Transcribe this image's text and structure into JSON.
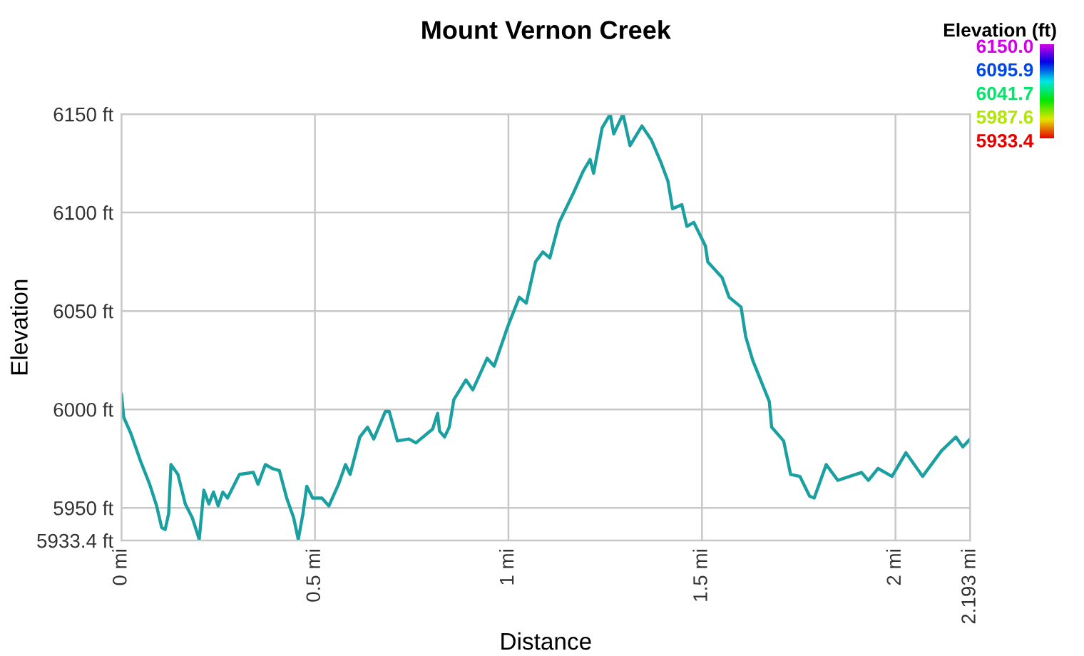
{
  "chart_data": {
    "type": "line",
    "title": "Mount Vernon Creek",
    "xlabel": "Distance",
    "ylabel": "Elevation",
    "clabel": "Elevation (ft)",
    "x": [
      0,
      0.006,
      0.024,
      0.049,
      0.073,
      0.091,
      0.104,
      0.113,
      0.122,
      0.128,
      0.146,
      0.165,
      0.183,
      0.201,
      0.213,
      0.226,
      0.238,
      0.25,
      0.262,
      0.274,
      0.305,
      0.341,
      0.353,
      0.372,
      0.39,
      0.408,
      0.427,
      0.445,
      0.457,
      0.469,
      0.479,
      0.494,
      0.518,
      0.536,
      0.561,
      0.579,
      0.591,
      0.616,
      0.636,
      0.652,
      0.682,
      0.692,
      0.713,
      0.743,
      0.761,
      0.804,
      0.817,
      0.822,
      0.835,
      0.847,
      0.859,
      0.89,
      0.908,
      0.945,
      0.963,
      0.998,
      1.028,
      1.046,
      1.07,
      1.089,
      1.107,
      1.131,
      1.168,
      1.193,
      1.211,
      1.22,
      1.242,
      1.263,
      1.272,
      1.296,
      1.314,
      1.345,
      1.369,
      1.393,
      1.412,
      1.424,
      1.448,
      1.461,
      1.479,
      1.509,
      1.515,
      1.552,
      1.57,
      1.601,
      1.613,
      1.631,
      1.674,
      1.68,
      1.711,
      1.729,
      1.753,
      1.778,
      1.79,
      1.821,
      1.851,
      1.912,
      1.93,
      1.955,
      1.991,
      2.027,
      2.07,
      2.119,
      2.156,
      2.174,
      2.193
    ],
    "values": [
      6008,
      5996,
      5988,
      5974,
      5962,
      5951,
      5940,
      5939,
      5947,
      5972,
      5967,
      5952,
      5945,
      5934,
      5959,
      5952,
      5958,
      5951,
      5958,
      5955,
      5967,
      5968,
      5962,
      5972,
      5970,
      5969,
      5955,
      5945,
      5934,
      5947,
      5961,
      5955,
      5955,
      5951,
      5962,
      5972,
      5967,
      5986,
      5991,
      5985,
      5999,
      5999,
      5984,
      5985,
      5983,
      5990,
      5998,
      5989,
      5986,
      5991,
      6005,
      6015,
      6010,
      6026,
      6022,
      6042,
      6057,
      6054,
      6075,
      6080,
      6077,
      6095,
      6110,
      6121,
      6127,
      6120,
      6143,
      6150,
      6140,
      6150,
      6134,
      6144,
      6137,
      6126,
      6116,
      6102,
      6104,
      6093,
      6095,
      6083,
      6075,
      6067,
      6057,
      6052,
      6037,
      6025,
      6004,
      5991,
      5984,
      5967,
      5966,
      5956,
      5955,
      5972,
      5964,
      5968,
      5964,
      5970,
      5966,
      5978,
      5966,
      5979,
      5986,
      5981,
      5985
    ],
    "color": "#1aa0a0",
    "xlim": [
      0,
      2.193
    ],
    "xticks": [
      {
        "value": 0,
        "label": "0 mi"
      },
      {
        "value": 0.5,
        "label": "0.5 mi"
      },
      {
        "value": 1,
        "label": "1 mi"
      },
      {
        "value": 1.5,
        "label": "1.5 mi"
      },
      {
        "value": 2,
        "label": "2 mi"
      },
      {
        "value": 2.193,
        "label": "2.193 mi"
      }
    ],
    "ylim": [
      5933.4,
      6150
    ],
    "yticks": [
      {
        "value": 5933.4,
        "label": "5933.4 ft"
      },
      {
        "value": 5950,
        "label": "5950 ft"
      },
      {
        "value": 6000,
        "label": "6000 ft"
      },
      {
        "value": 6050,
        "label": "6050 ft"
      },
      {
        "value": 6100,
        "label": "6100 ft"
      },
      {
        "value": 6150,
        "label": "6150 ft"
      }
    ],
    "clim": [
      5933.4,
      6150
    ],
    "cticks": [
      {
        "value": 6150.0,
        "label": "6150.0"
      },
      {
        "value": 6095.9,
        "label": "6095.9"
      },
      {
        "value": 6041.7,
        "label": "6041.7"
      },
      {
        "value": 5987.6,
        "label": "5987.6"
      },
      {
        "value": 5933.4,
        "label": "5933.4"
      }
    ],
    "grid": true,
    "line_style": "solid",
    "marker": "none"
  }
}
